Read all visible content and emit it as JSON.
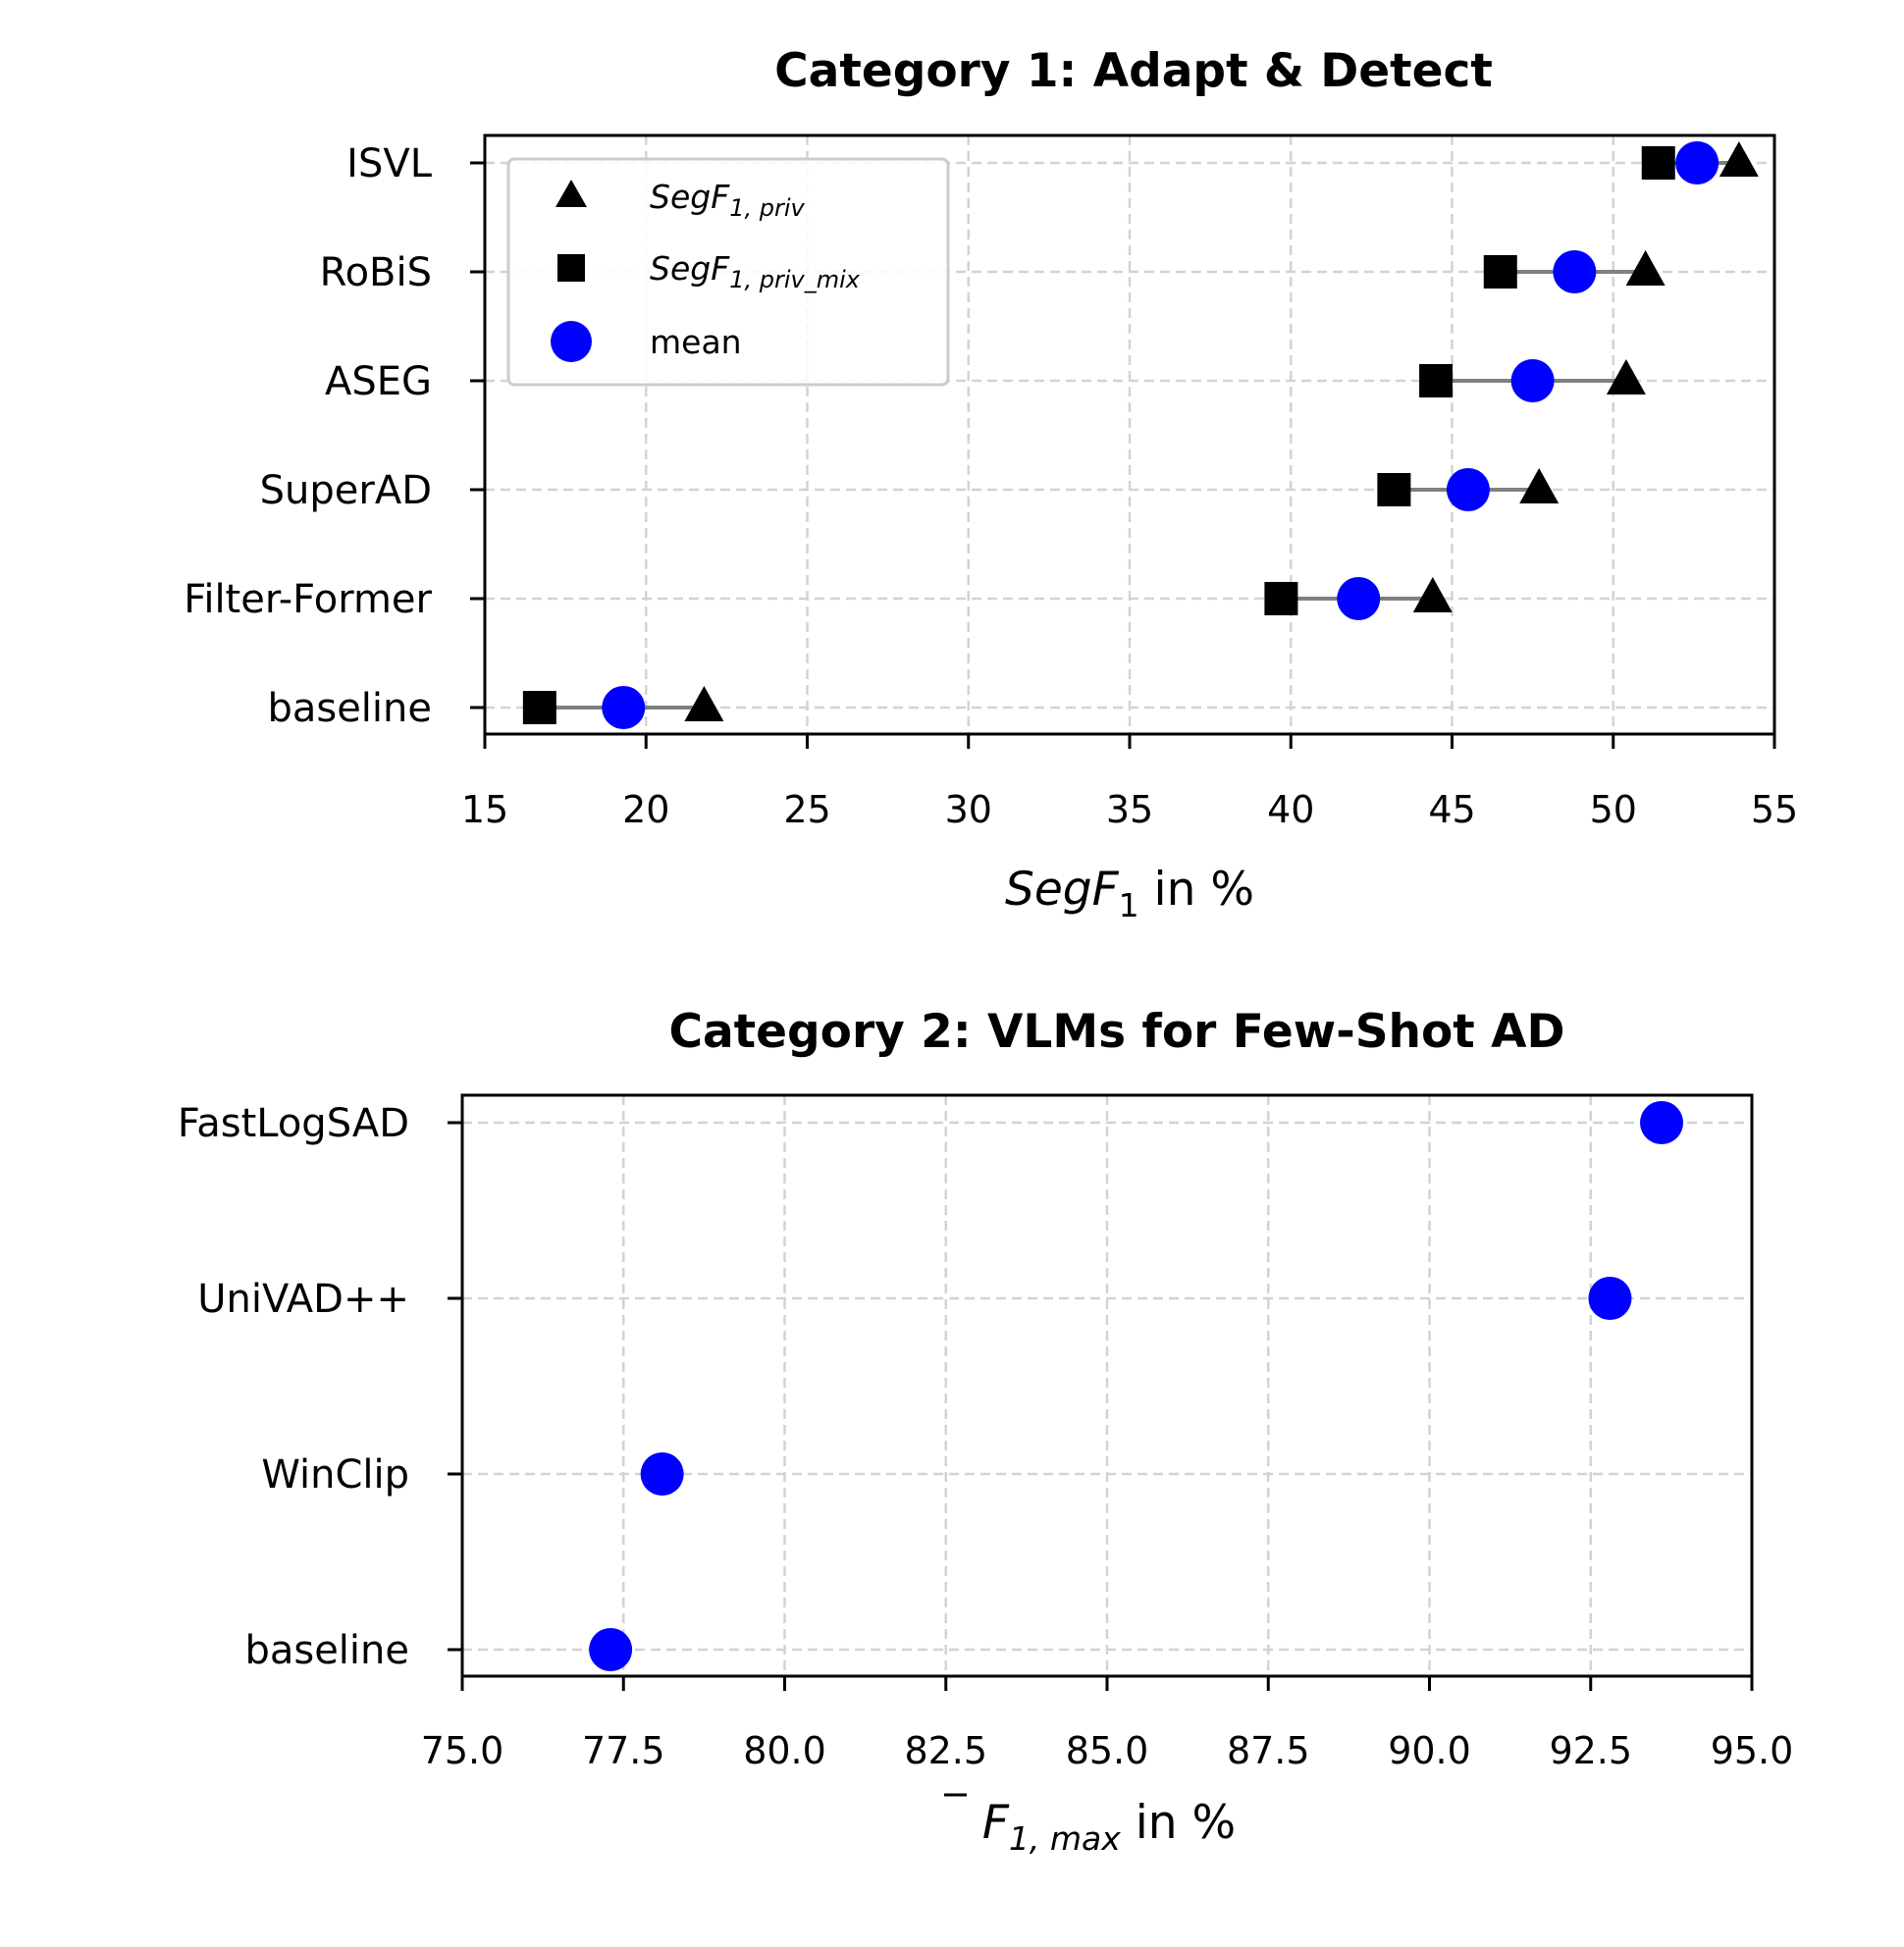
{
  "chart_data": [
    {
      "type": "scatter",
      "title": "Category 1: Adapt & Detect",
      "xlabel": {
        "base": "SegF",
        "sub": "1",
        "rest": " in %"
      },
      "xlim": [
        15,
        55
      ],
      "xticks": [
        15,
        20,
        25,
        30,
        35,
        40,
        45,
        50,
        55
      ],
      "xtick_labels": [
        "15",
        "20",
        "25",
        "30",
        "35",
        "40",
        "45",
        "50",
        "55"
      ],
      "grid": true,
      "legend_position": "top-left",
      "categories": [
        "ISVL",
        "RoBiS",
        "ASEG",
        "SuperAD",
        "Filter-Former",
        "baseline"
      ],
      "series": [
        {
          "name": "SegF1,priv",
          "legend": {
            "base": "SegF",
            "sub": "1, priv"
          },
          "marker": "triangle",
          "color": "#000000",
          "values": [
            53.9,
            51.0,
            50.4,
            47.7,
            44.4,
            21.8
          ]
        },
        {
          "name": "SegF1,priv_mix",
          "legend": {
            "base": "SegF",
            "sub": "1, priv_mix"
          },
          "marker": "square",
          "color": "#000000",
          "values": [
            51.4,
            46.5,
            44.5,
            43.2,
            39.7,
            16.7
          ]
        },
        {
          "name": "mean",
          "legend": {
            "base": "mean",
            "sub": ""
          },
          "marker": "circle",
          "color": "#0000ff",
          "values": [
            52.6,
            48.8,
            47.5,
            45.5,
            42.1,
            19.3
          ]
        }
      ],
      "range_line_color": "#808080"
    },
    {
      "type": "scatter",
      "title": "Category 2: VLMs for Few-Shot AD",
      "xlabel": {
        "base": "F",
        "sub": "1, max",
        "rest": " in %",
        "overline": true
      },
      "xlim": [
        75.0,
        95.0
      ],
      "xticks": [
        75.0,
        77.5,
        80.0,
        82.5,
        85.0,
        87.5,
        90.0,
        92.5,
        95.0
      ],
      "xtick_labels": [
        "75.0",
        "77.5",
        "80.0",
        "82.5",
        "85.0",
        "87.5",
        "90.0",
        "92.5",
        "95.0"
      ],
      "grid": true,
      "categories": [
        "FastLogSAD",
        "UniVAD++",
        "WinClip",
        "baseline"
      ],
      "series": [
        {
          "name": "mean",
          "marker": "circle",
          "color": "#0000ff",
          "values": [
            93.6,
            92.8,
            78.1,
            77.3
          ]
        }
      ]
    }
  ]
}
